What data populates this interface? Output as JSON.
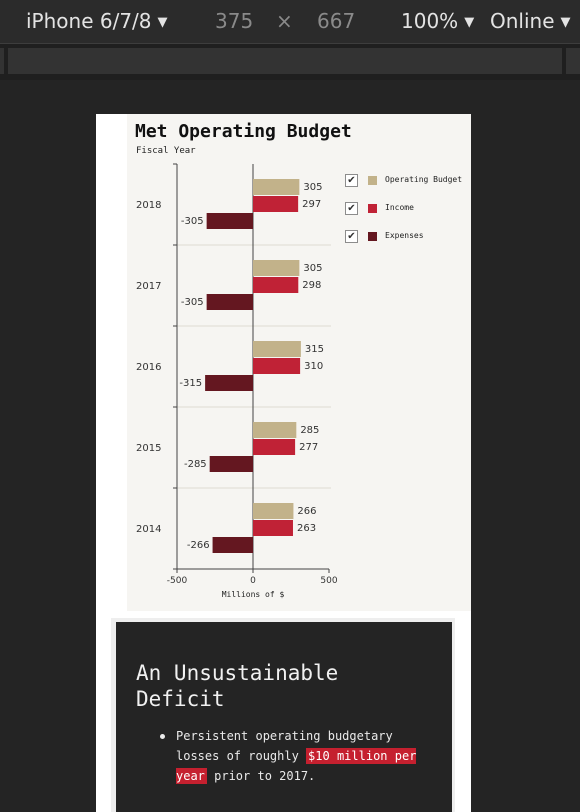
{
  "devtools": {
    "device": "iPhone 6/7/8",
    "width": "375",
    "times": "×",
    "height": "667",
    "zoom": "100%",
    "network": "Online"
  },
  "chart": {
    "title": "Met Operating Budget",
    "subtitle": "Fiscal Year",
    "xlabel": "Millions of $",
    "legend": [
      {
        "label": "Operating Budget",
        "color": "#c2b28a",
        "checked": true
      },
      {
        "label": "Income",
        "color": "#c02236",
        "checked": true
      },
      {
        "label": "Expenses",
        "color": "#641720",
        "checked": true
      }
    ]
  },
  "chart_data": {
    "type": "bar",
    "orientation": "horizontal",
    "categories": [
      "2018",
      "2017",
      "2016",
      "2015",
      "2014"
    ],
    "series": [
      {
        "name": "Operating Budget",
        "values": [
          305,
          305,
          315,
          285,
          266
        ]
      },
      {
        "name": "Income",
        "values": [
          297,
          298,
          310,
          277,
          263
        ]
      },
      {
        "name": "Expenses",
        "values": [
          -305,
          -305,
          -315,
          -285,
          -266
        ]
      }
    ],
    "xlim": [
      -500,
      500
    ],
    "xticks": [
      -500,
      0,
      500
    ],
    "title": "Met Operating Budget",
    "subtitle": "Fiscal Year",
    "xlabel": "Millions of $",
    "legend_position": "right"
  },
  "content": {
    "heading": "An Unsustainable Deficit",
    "bullet_before": "Persistent operating budgetary losses of roughly ",
    "bullet_highlight": "$10 million per year",
    "bullet_after": " prior to 2017."
  }
}
